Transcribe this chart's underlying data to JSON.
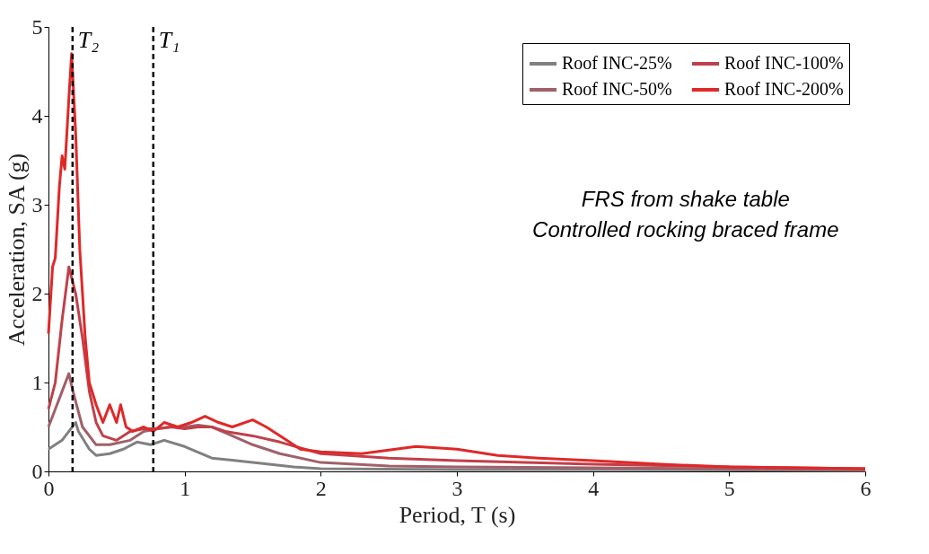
{
  "chart_data": {
    "type": "line",
    "xlabel": "Period, T (s)",
    "ylabel": "Acceleration, SA (g)",
    "xlim": [
      0,
      6
    ],
    "xticks": [
      0,
      1,
      2,
      3,
      4,
      5,
      6
    ],
    "ylim": [
      0,
      5
    ],
    "yticks": [
      0,
      1,
      2,
      3,
      4,
      5
    ],
    "grid": false,
    "legend": "top right",
    "line_style": "solid",
    "marker": "none",
    "annotations": [
      "FRS from shake table",
      "Controlled rocking braced frame"
    ],
    "ref_lines": [
      {
        "axis": "x",
        "value": 0.177,
        "label": "T₂",
        "color": "#000000",
        "line_style": "dashed"
      },
      {
        "axis": "x",
        "value": 0.77,
        "label": "T₁",
        "color": "#000000",
        "line_style": "dashed"
      }
    ],
    "series": [
      {
        "name": "Roof INC-25%",
        "color": "#808080",
        "x": [
          0,
          0.05,
          0.1,
          0.15,
          0.2,
          0.22,
          0.3,
          0.35,
          0.45,
          0.55,
          0.65,
          0.75,
          0.85,
          1.0,
          1.2,
          1.5,
          1.8,
          2.0,
          3.0,
          4.0,
          6.0
        ],
        "values": [
          0.25,
          0.3,
          0.35,
          0.45,
          0.55,
          0.45,
          0.25,
          0.18,
          0.2,
          0.25,
          0.33,
          0.3,
          0.35,
          0.28,
          0.15,
          0.1,
          0.05,
          0.03,
          0.02,
          0.02,
          0.01
        ]
      },
      {
        "name": "Roof INC-50%",
        "color": "#a0606a",
        "x": [
          0,
          0.05,
          0.1,
          0.15,
          0.18,
          0.25,
          0.35,
          0.45,
          0.6,
          0.7,
          0.8,
          0.9,
          1.0,
          1.1,
          1.2,
          1.35,
          1.5,
          1.7,
          2.0,
          2.5,
          3.0,
          4.0,
          5.0,
          6.0
        ],
        "values": [
          0.5,
          0.7,
          0.9,
          1.1,
          0.9,
          0.5,
          0.3,
          0.3,
          0.35,
          0.45,
          0.48,
          0.5,
          0.5,
          0.52,
          0.5,
          0.4,
          0.3,
          0.2,
          0.1,
          0.06,
          0.05,
          0.04,
          0.03,
          0.02
        ]
      },
      {
        "name": "Roof INC-100%",
        "color": "#c0404a",
        "x": [
          0,
          0.05,
          0.1,
          0.15,
          0.2,
          0.25,
          0.3,
          0.35,
          0.4,
          0.5,
          0.6,
          0.7,
          0.8,
          0.9,
          1.0,
          1.1,
          1.2,
          1.3,
          1.5,
          1.7,
          2.0,
          2.5,
          3.0,
          3.5,
          4.0,
          5.0,
          6.0
        ],
        "values": [
          0.7,
          1.0,
          1.7,
          2.3,
          2.0,
          1.5,
          0.9,
          0.55,
          0.4,
          0.35,
          0.45,
          0.48,
          0.48,
          0.5,
          0.48,
          0.5,
          0.5,
          0.45,
          0.4,
          0.33,
          0.2,
          0.15,
          0.12,
          0.1,
          0.08,
          0.05,
          0.03
        ]
      },
      {
        "name": "Roof INC-200%",
        "color": "#e02828",
        "x": [
          0,
          0.03,
          0.05,
          0.08,
          0.1,
          0.12,
          0.15,
          0.17,
          0.2,
          0.23,
          0.27,
          0.3,
          0.35,
          0.4,
          0.45,
          0.5,
          0.53,
          0.57,
          0.62,
          0.7,
          0.77,
          0.85,
          0.95,
          1.05,
          1.15,
          1.25,
          1.35,
          1.5,
          1.6,
          1.75,
          1.85,
          2.0,
          2.3,
          2.7,
          3.0,
          3.3,
          3.6,
          4.0,
          4.5,
          5.0,
          5.5,
          6.0
        ],
        "values": [
          1.55,
          2.3,
          2.4,
          3.2,
          3.55,
          3.4,
          4.2,
          4.7,
          3.8,
          2.5,
          1.5,
          1.0,
          0.75,
          0.55,
          0.75,
          0.55,
          0.75,
          0.5,
          0.45,
          0.5,
          0.45,
          0.55,
          0.5,
          0.55,
          0.62,
          0.55,
          0.5,
          0.58,
          0.5,
          0.35,
          0.25,
          0.22,
          0.2,
          0.28,
          0.25,
          0.18,
          0.15,
          0.12,
          0.08,
          0.05,
          0.04,
          0.03
        ]
      }
    ]
  }
}
